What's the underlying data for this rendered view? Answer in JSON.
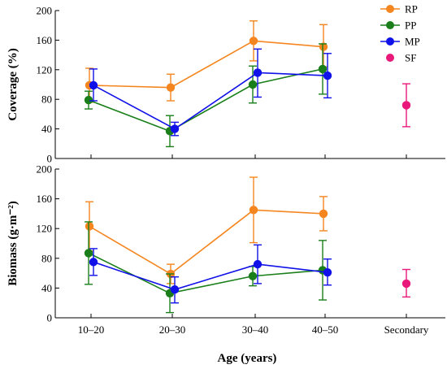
{
  "colors": {
    "RP": "#f5861f",
    "PP": "#1a7f1a",
    "MP": "#1010e8",
    "SF": "#e8197a"
  },
  "legend": [
    "RP",
    "PP",
    "MP",
    "SF"
  ],
  "chart_data": [
    {
      "type": "line",
      "panel": "top",
      "categories": [
        "10–20",
        "20–30",
        "30–40",
        "40–50",
        "Secondary"
      ],
      "ylabel": "Coverage (%)",
      "xlabel": "",
      "ylim": [
        0,
        200
      ],
      "yticks": [
        "0",
        "40",
        "80",
        "120",
        "160",
        "200"
      ],
      "series": [
        {
          "name": "RP",
          "values": [
            99,
            96,
            159,
            151,
            null
          ],
          "err_low": [
            23,
            18,
            27,
            27,
            null
          ],
          "err_high": [
            23,
            18,
            27,
            30,
            null
          ]
        },
        {
          "name": "PP",
          "values": [
            79,
            37,
            100,
            121,
            null
          ],
          "err_low": [
            12,
            21,
            25,
            34,
            null
          ],
          "err_high": [
            12,
            21,
            25,
            34,
            null
          ]
        },
        {
          "name": "MP",
          "values": [
            99,
            40,
            116,
            112,
            null
          ],
          "err_low": [
            21,
            9,
            33,
            30,
            null
          ],
          "err_high": [
            22,
            9,
            32,
            30,
            null
          ]
        },
        {
          "name": "SF",
          "values": [
            null,
            null,
            null,
            null,
            72
          ],
          "err_low": [
            null,
            null,
            null,
            null,
            29
          ],
          "err_high": [
            null,
            null,
            null,
            null,
            29
          ]
        }
      ]
    },
    {
      "type": "line",
      "panel": "bottom",
      "categories": [
        "10–20",
        "20–30",
        "30–40",
        "40–50",
        "Secondary"
      ],
      "ylabel": "Biomass (g·m⁻²)",
      "xlabel": "Age (years)",
      "ylim": [
        0,
        200
      ],
      "yticks": [
        "0",
        "40",
        "80",
        "120",
        "160",
        "200"
      ],
      "series": [
        {
          "name": "RP",
          "values": [
            123,
            59,
            145,
            140,
            null
          ],
          "err_low": [
            33,
            13,
            44,
            23,
            null
          ],
          "err_high": [
            33,
            13,
            44,
            23,
            null
          ]
        },
        {
          "name": "PP",
          "values": [
            87,
            33,
            56,
            64,
            null
          ],
          "err_low": [
            42,
            26,
            13,
            40,
            null
          ],
          "err_high": [
            42,
            26,
            13,
            40,
            null
          ]
        },
        {
          "name": "MP",
          "values": [
            75,
            38,
            72,
            61,
            null
          ],
          "err_low": [
            18,
            18,
            26,
            17,
            null
          ],
          "err_high": [
            18,
            17,
            26,
            18,
            null
          ]
        },
        {
          "name": "SF",
          "values": [
            null,
            null,
            null,
            null,
            46
          ],
          "err_low": [
            null,
            null,
            null,
            null,
            18
          ],
          "err_high": [
            null,
            null,
            null,
            null,
            19
          ]
        }
      ]
    }
  ]
}
